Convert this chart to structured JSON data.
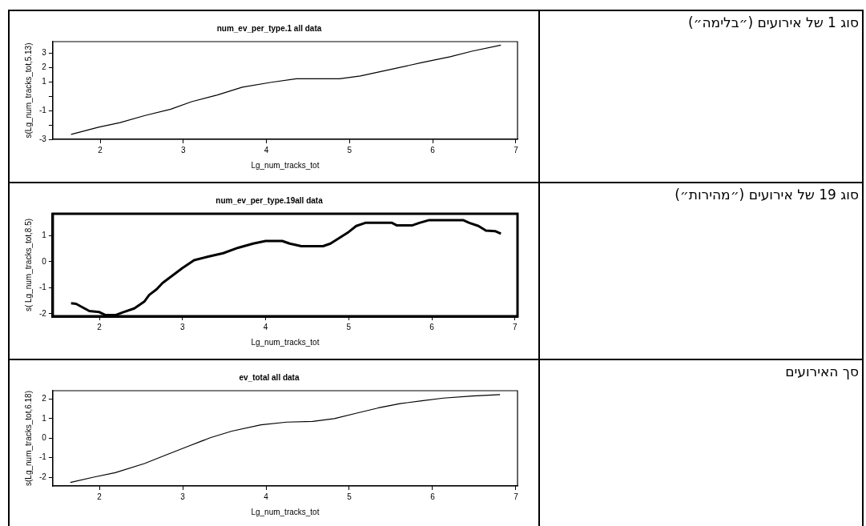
{
  "chart_data": [
    {
      "type": "line",
      "title": "num_ev_per_type.1 all data",
      "xlabel": "Lg_num_tracks_tot",
      "ylabel": "s(Lg_num_tracks_tot,5.13)",
      "annotations": [
        "סוג 1 של אירועים (״בלימה״)"
      ],
      "xlim": [
        1.43,
        7.02
      ],
      "xticks": [
        2,
        3,
        4,
        5,
        6,
        7
      ],
      "ylim": [
        -3,
        3.8
      ],
      "yticks": [
        -3,
        {
          "value": -2,
          "label": null
        },
        -1,
        {
          "value": 0,
          "label": null
        },
        1,
        2,
        3
      ],
      "grid": false,
      "legend": false,
      "marker": "none",
      "series": [
        {
          "color": "#000000",
          "x": [
            1.65,
            1.98,
            2.24,
            2.54,
            2.85,
            3.1,
            3.41,
            3.71,
            4.06,
            4.36,
            4.88,
            5.13,
            5.52,
            5.87,
            6.21,
            6.47,
            6.82
          ],
          "values": [
            -2.66,
            -2.16,
            -1.84,
            -1.34,
            -0.9,
            -0.38,
            0.09,
            0.63,
            0.97,
            1.22,
            1.22,
            1.41,
            1.9,
            2.34,
            2.75,
            3.13,
            3.56
          ]
        }
      ]
    },
    {
      "type": "line",
      "title": "num_ev_per_type.19all data",
      "xlabel": "Lg_num_tracks_tot",
      "ylabel": "s( Lg_num_tracks_tot,8.5)",
      "annotations": [
        "סוג 19 של אירועים (״מהירות״)"
      ],
      "xlim": [
        1.44,
        7.03
      ],
      "xticks": [
        2,
        3,
        4,
        5,
        6,
        7
      ],
      "ylim": [
        -2.1,
        1.85
      ],
      "yticks": [
        -2,
        -1,
        0,
        1
      ],
      "grid": false,
      "legend": false,
      "marker": "none",
      "series": [
        {
          "color": "#000000",
          "x": [
            1.66,
            1.72,
            1.8,
            1.88,
            2.0,
            2.07,
            2.2,
            2.29,
            2.42,
            2.54,
            2.6,
            2.69,
            2.76,
            3.0,
            3.14,
            3.31,
            3.49,
            3.67,
            3.85,
            4.0,
            4.2,
            4.29,
            4.43,
            4.69,
            4.78,
            5.0,
            5.09,
            5.2,
            5.52,
            5.58,
            5.76,
            5.85,
            5.96,
            6.38,
            6.45,
            6.56,
            6.65,
            6.76,
            6.83
          ],
          "values": [
            -1.6,
            -1.62,
            -1.76,
            -1.9,
            -1.94,
            -2.05,
            -2.05,
            -1.94,
            -1.8,
            -1.54,
            -1.28,
            -1.06,
            -0.82,
            -0.24,
            0.06,
            0.2,
            0.33,
            0.54,
            0.7,
            0.8,
            0.8,
            0.7,
            0.6,
            0.6,
            0.7,
            1.15,
            1.38,
            1.5,
            1.5,
            1.4,
            1.4,
            1.5,
            1.6,
            1.6,
            1.5,
            1.38,
            1.2,
            1.18,
            1.08
          ]
        }
      ]
    },
    {
      "type": "line",
      "title": "ev_total all data",
      "xlabel": "Lg_num_tracks_tot",
      "ylabel": "s(Lg_num_tracks_tot,6.18)",
      "annotations": [
        "סך האירועים"
      ],
      "xlim": [
        1.44,
        7.02
      ],
      "xticks": [
        2,
        3,
        4,
        5,
        6,
        7
      ],
      "ylim": [
        -2.45,
        2.43
      ],
      "yticks": [
        -2,
        -1,
        0,
        1,
        2
      ],
      "grid": false,
      "legend": false,
      "marker": "none",
      "series": [
        {
          "color": "#000000",
          "x": [
            1.65,
            1.93,
            2.19,
            2.54,
            2.8,
            3.07,
            3.33,
            3.59,
            3.94,
            4.25,
            4.56,
            4.82,
            5.08,
            5.35,
            5.61,
            5.87,
            6.13,
            6.48,
            6.81
          ],
          "values": [
            -2.27,
            -2.0,
            -1.77,
            -1.3,
            -0.86,
            -0.41,
            0.02,
            0.36,
            0.68,
            0.82,
            0.86,
            1.0,
            1.27,
            1.55,
            1.77,
            1.91,
            2.05,
            2.16,
            2.23
          ]
        }
      ]
    }
  ]
}
